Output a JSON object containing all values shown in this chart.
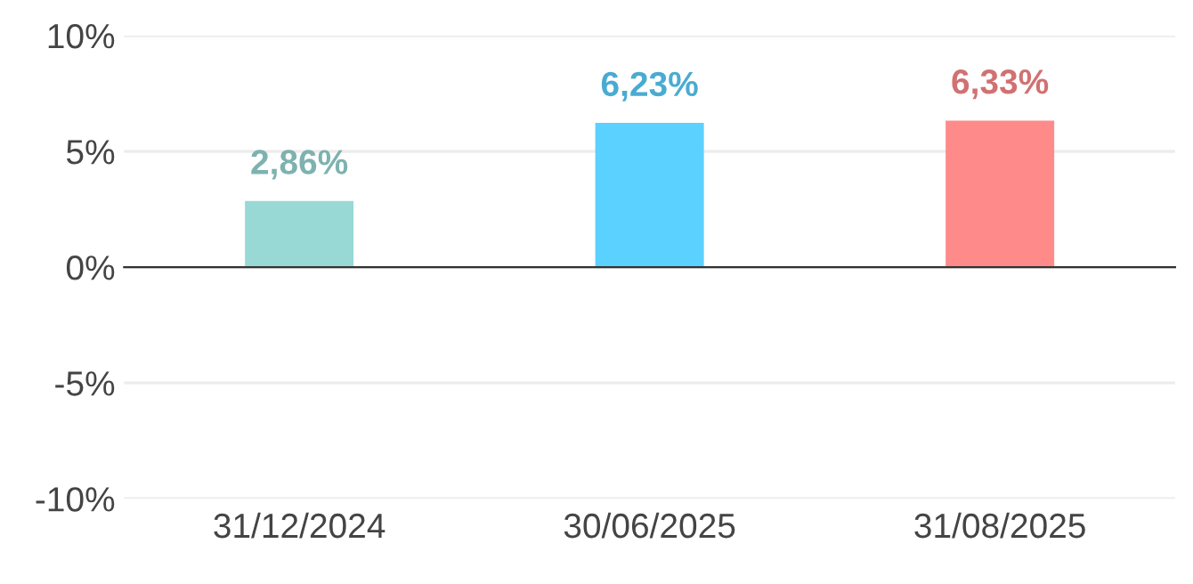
{
  "chart_data": {
    "type": "bar",
    "categories": [
      "31/12/2024",
      "30/06/2025",
      "31/08/2025"
    ],
    "values": [
      2.86,
      6.23,
      6.33
    ],
    "colors": [
      "#98d9d6",
      "#5ad1ff",
      "#ff8a8a"
    ],
    "value_labels": [
      "2,86%",
      "6,23%",
      "6,33%"
    ],
    "ylim": [
      -10,
      10
    ],
    "yticks": [
      {
        "value": -10,
        "label": "-10%"
      },
      {
        "value": -5,
        "label": "-5%"
      },
      {
        "value": 0,
        "label": "0%"
      },
      {
        "value": 5,
        "label": "5%"
      },
      {
        "value": 10,
        "label": "10%"
      }
    ],
    "grid": "y",
    "legend": false
  }
}
